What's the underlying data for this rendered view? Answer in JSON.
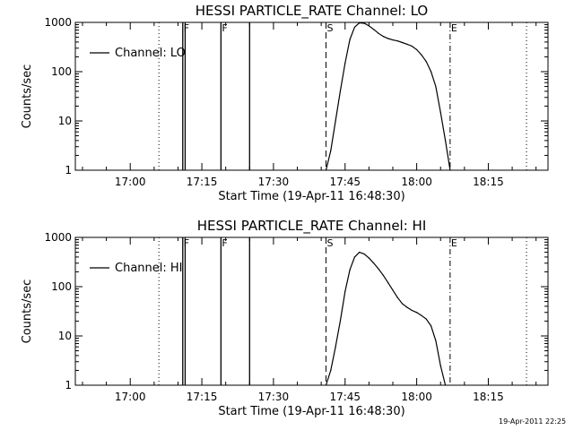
{
  "footer_timestamp": "19-Apr-2011 22:25",
  "chart_data": [
    {
      "type": "line",
      "title": "HESSI PARTICLE_RATE Channel: LO",
      "xlabel": "Start Time (19-Apr-11 16:48:30)",
      "ylabel": "Counts/sec",
      "yscale": "log",
      "ylim": [
        1,
        1000
      ],
      "xlim": [
        "16:48:30",
        "18:27:30"
      ],
      "x_ticks": [
        "17:00",
        "17:15",
        "17:30",
        "17:45",
        "18:00",
        "18:15"
      ],
      "y_ticks": [
        "1",
        "10",
        "100",
        "1000"
      ],
      "legend": {
        "position": "upper-left",
        "label": "Channel: LO"
      },
      "markers": [
        {
          "time": "17:06",
          "style": "dotted",
          "label": ""
        },
        {
          "time": "17:11",
          "style": "solid",
          "label": "F"
        },
        {
          "time": "17:11:30",
          "style": "solid",
          "label": ""
        },
        {
          "time": "17:19",
          "style": "solid",
          "label": "F"
        },
        {
          "time": "17:25",
          "style": "solid",
          "label": ""
        },
        {
          "time": "17:41",
          "style": "dashed",
          "label": "S"
        },
        {
          "time": "18:07",
          "style": "dashdot",
          "label": "E"
        },
        {
          "time": "18:23",
          "style": "dotted",
          "label": ""
        }
      ],
      "series": [
        {
          "name": "Channel: LO",
          "x": [
            "17:41",
            "17:42",
            "17:43",
            "17:44",
            "17:45",
            "17:46",
            "17:47",
            "17:48",
            "17:49",
            "17:50",
            "17:51",
            "17:52",
            "17:53",
            "17:54",
            "17:55",
            "17:56",
            "17:57",
            "17:58",
            "17:59",
            "18:00",
            "18:01",
            "18:02",
            "18:03",
            "18:04",
            "18:05",
            "18:06",
            "18:07"
          ],
          "y": [
            1,
            2.5,
            10,
            40,
            150,
            450,
            800,
            980,
            960,
            850,
            720,
            600,
            520,
            470,
            440,
            420,
            390,
            360,
            330,
            280,
            220,
            160,
            100,
            50,
            15,
            4,
            1
          ]
        }
      ]
    },
    {
      "type": "line",
      "title": "HESSI PARTICLE_RATE Channel: HI",
      "xlabel": "Start Time (19-Apr-11 16:48:30)",
      "ylabel": "Counts/sec",
      "yscale": "log",
      "ylim": [
        1,
        1000
      ],
      "xlim": [
        "16:48:30",
        "18:27:30"
      ],
      "x_ticks": [
        "17:00",
        "17:15",
        "17:30",
        "17:45",
        "18:00",
        "18:15"
      ],
      "y_ticks": [
        "1",
        "10",
        "100",
        "1000"
      ],
      "legend": {
        "position": "upper-left",
        "label": "Channel: HI"
      },
      "markers": [
        {
          "time": "17:06",
          "style": "dotted",
          "label": ""
        },
        {
          "time": "17:11",
          "style": "solid",
          "label": "F"
        },
        {
          "time": "17:11:30",
          "style": "solid",
          "label": ""
        },
        {
          "time": "17:19",
          "style": "solid",
          "label": "F"
        },
        {
          "time": "17:25",
          "style": "solid",
          "label": ""
        },
        {
          "time": "17:41",
          "style": "dashed",
          "label": "S"
        },
        {
          "time": "18:07",
          "style": "dashdot",
          "label": "E"
        },
        {
          "time": "18:23",
          "style": "dotted",
          "label": ""
        }
      ],
      "series": [
        {
          "name": "Channel: HI",
          "x": [
            "17:41",
            "17:42",
            "17:43",
            "17:44",
            "17:45",
            "17:46",
            "17:47",
            "17:48",
            "17:49",
            "17:50",
            "17:51",
            "17:52",
            "17:53",
            "17:54",
            "17:55",
            "17:56",
            "17:57",
            "17:58",
            "17:59",
            "18:00",
            "18:01",
            "18:02",
            "18:03",
            "18:04",
            "18:05",
            "18:06"
          ],
          "y": [
            1,
            2,
            6,
            20,
            80,
            220,
            400,
            500,
            460,
            380,
            300,
            230,
            170,
            120,
            85,
            60,
            45,
            38,
            33,
            30,
            26,
            22,
            16,
            8,
            2.5,
            1
          ]
        }
      ]
    }
  ]
}
